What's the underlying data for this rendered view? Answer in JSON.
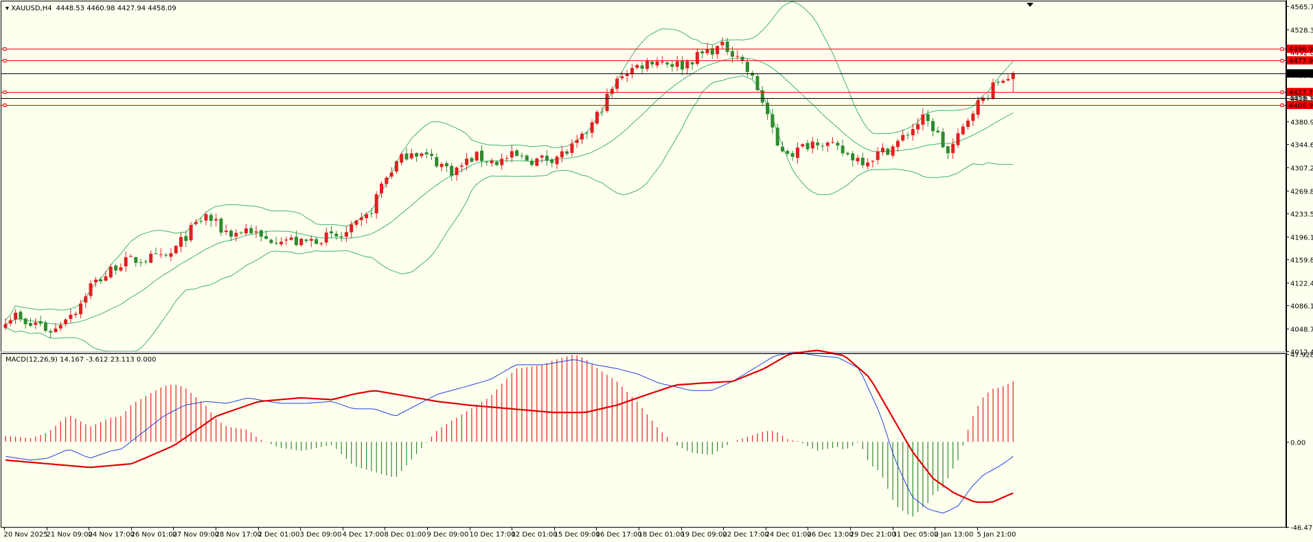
{
  "header": {
    "symbol": "XAUUSD,H4",
    "ohlc": "4448.53 4460.98 4427.94 4458.09"
  },
  "macd_header": "MACD(12,26,9) 14.167 -3.612 23.113 0.000",
  "colors": {
    "background": "#fffff0",
    "bull": "#e02020",
    "bear": "#2e8b2e",
    "bands": "#3cb371",
    "hline": "#ff0000",
    "price_line": "#000000",
    "macd_line": "#1f3fe0",
    "signal_line": "#e00000"
  },
  "chart_data": [
    {
      "type": "candlestick",
      "symbol": "XAUUSD",
      "timeframe": "H4",
      "ylim": [
        4012.4,
        4573.0
      ],
      "y_ticks": [
        "4565.70",
        "4528.30",
        "4492.00",
        "4455.30",
        "4418.30",
        "4380.90",
        "4344.60",
        "4307.20",
        "4269.80",
        "4233.50",
        "4196.10",
        "4159.80",
        "4122.40",
        "4086.10",
        "4048.70",
        "4012.40"
      ],
      "x_labels": [
        "20 Nov 2025",
        "21 Nov 09:00",
        "24 Nov 17:00",
        "26 Nov 01:00",
        "27 Nov 09:00",
        "28 Nov 17:00",
        "2 Dec 01:00",
        "3 Dec 09:00",
        "4 Dec 17:00",
        "8 Dec 01:00",
        "9 Dec 09:00",
        "10 Dec 17:00",
        "12 Dec 01:00",
        "15 Dec 09:00",
        "16 Dec 17:00",
        "18 Dec 01:00",
        "19 Dec 09:00",
        "22 Dec 17:00",
        "24 Dec 01:00",
        "26 Dec 13:00",
        "29 Dec 21:00",
        "31 Dec 05:00",
        "2 Jan 13:00",
        "5 Jan 21:00"
      ],
      "bars": 202,
      "close_anchors": [
        [
          0,
          4065
        ],
        [
          5,
          4070
        ],
        [
          10,
          4050
        ],
        [
          15,
          4060
        ],
        [
          20,
          4045
        ],
        [
          24,
          4048
        ],
        [
          28,
          4068
        ],
        [
          34,
          4080
        ],
        [
          40,
          4118
        ],
        [
          47,
          4133
        ],
        [
          53,
          4152
        ],
        [
          60,
          4158
        ],
        [
          65,
          4160
        ],
        [
          70,
          4162
        ],
        [
          75,
          4160
        ],
        [
          79,
          4170
        ],
        [
          84,
          4192
        ],
        [
          90,
          4215
        ],
        [
          95,
          4230
        ],
        [
          102,
          4208
        ],
        [
          108,
          4200
        ],
        [
          115,
          4210
        ],
        [
          122,
          4190
        ],
        [
          130,
          4195
        ],
        [
          140,
          4185
        ],
        [
          150,
          4195
        ],
        [
          159,
          4195
        ],
        [
          165,
          4210
        ],
        [
          172,
          4230
        ],
        [
          178,
          4280
        ],
        [
          184,
          4310
        ],
        [
          192,
          4335
        ],
        [
          202,
          4320
        ],
        [
          212,
          4300
        ],
        [
          222,
          4325
        ],
        [
          232,
          4315
        ],
        [
          240,
          4325
        ],
        [
          250,
          4318
        ],
        [
          258,
          4322
        ],
        [
          265,
          4330
        ],
        [
          272,
          4348
        ],
        [
          278,
          4378
        ],
        [
          285,
          4420
        ],
        [
          292,
          4458
        ],
        [
          300,
          4470
        ],
        [
          307,
          4480
        ],
        [
          314,
          4475
        ],
        [
          320,
          4470
        ],
        [
          326,
          4482
        ],
        [
          333,
          4495
        ],
        [
          340,
          4500
        ],
        [
          347,
          4488
        ],
        [
          350,
          4468
        ],
        [
          355,
          4440
        ],
        [
          360,
          4400
        ],
        [
          365,
          4340
        ],
        [
          373,
          4330
        ],
        [
          380,
          4345
        ],
        [
          385,
          4352
        ],
        [
          392,
          4338
        ],
        [
          400,
          4325
        ],
        [
          407,
          4318
        ],
        [
          414,
          4330
        ],
        [
          421,
          4342
        ],
        [
          428,
          4365
        ],
        [
          434,
          4385
        ],
        [
          440,
          4368
        ],
        [
          446,
          4328
        ],
        [
          452,
          4360
        ],
        [
          458,
          4402
        ],
        [
          464,
          4420
        ],
        [
          470,
          4445
        ],
        [
          477,
          4458.09
        ]
      ],
      "price_levels": [
        {
          "value": "4496.94",
          "color": "#ff0000"
        },
        {
          "value": "4477.96",
          "color": "#ff0000"
        },
        {
          "value": "4458.09",
          "color": "#000000"
        },
        {
          "value": "4427.73",
          "color": "#ff0000"
        },
        {
          "value": "4418.30",
          "color": "#000000"
        },
        {
          "value": "4406.91",
          "color": "#ff0000"
        }
      ],
      "indicators": [
        "Bollinger Bands"
      ]
    },
    {
      "type": "macd",
      "params": "MACD(12,26,9)",
      "ylim": [
        -46.479,
        47.928
      ],
      "y_ticks": [
        "47.928",
        "0.00",
        "-46.479"
      ],
      "macd_anchors": [
        [
          0,
          -8
        ],
        [
          12,
          -10
        ],
        [
          20,
          -9
        ],
        [
          30,
          -4
        ],
        [
          40,
          -9
        ],
        [
          50,
          -5
        ],
        [
          55,
          -4
        ],
        [
          65,
          5
        ],
        [
          75,
          14
        ],
        [
          85,
          20
        ],
        [
          95,
          22
        ],
        [
          105,
          21
        ],
        [
          115,
          24
        ],
        [
          130,
          21
        ],
        [
          142,
          21
        ],
        [
          155,
          22
        ],
        [
          165,
          18
        ],
        [
          175,
          18
        ],
        [
          185,
          14
        ],
        [
          195,
          20
        ],
        [
          205,
          26
        ],
        [
          218,
          30
        ],
        [
          230,
          34
        ],
        [
          242,
          42
        ],
        [
          255,
          42
        ],
        [
          270,
          45
        ],
        [
          280,
          42
        ],
        [
          290,
          40
        ],
        [
          300,
          37
        ],
        [
          310,
          32
        ],
        [
          318,
          30
        ],
        [
          325,
          28
        ],
        [
          335,
          28
        ],
        [
          345,
          33
        ],
        [
          355,
          40
        ],
        [
          365,
          47
        ],
        [
          375,
          49
        ],
        [
          385,
          47
        ],
        [
          395,
          46
        ],
        [
          405,
          40
        ],
        [
          415,
          15
        ],
        [
          422,
          -10
        ],
        [
          430,
          -30
        ],
        [
          438,
          -37
        ],
        [
          445,
          -39
        ],
        [
          452,
          -35
        ],
        [
          458,
          -25
        ],
        [
          464,
          -18
        ],
        [
          472,
          -13
        ],
        [
          478,
          -8
        ]
      ],
      "signal_anchors": [
        [
          0,
          -10
        ],
        [
          20,
          -12
        ],
        [
          40,
          -14
        ],
        [
          60,
          -12
        ],
        [
          80,
          -2
        ],
        [
          100,
          14
        ],
        [
          120,
          22
        ],
        [
          140,
          24
        ],
        [
          155,
          23
        ],
        [
          165,
          26
        ],
        [
          175,
          28
        ],
        [
          190,
          25
        ],
        [
          205,
          22
        ],
        [
          220,
          20
        ],
        [
          240,
          18
        ],
        [
          260,
          16
        ],
        [
          275,
          16
        ],
        [
          290,
          20
        ],
        [
          305,
          26
        ],
        [
          318,
          31
        ],
        [
          330,
          32
        ],
        [
          345,
          33
        ],
        [
          360,
          40
        ],
        [
          372,
          48
        ],
        [
          385,
          50
        ],
        [
          398,
          47
        ],
        [
          410,
          35
        ],
        [
          420,
          15
        ],
        [
          430,
          -5
        ],
        [
          440,
          -20
        ],
        [
          450,
          -28
        ],
        [
          460,
          -33
        ],
        [
          468,
          -33
        ],
        [
          478,
          -28
        ]
      ],
      "hist_scale": 3.0
    }
  ]
}
